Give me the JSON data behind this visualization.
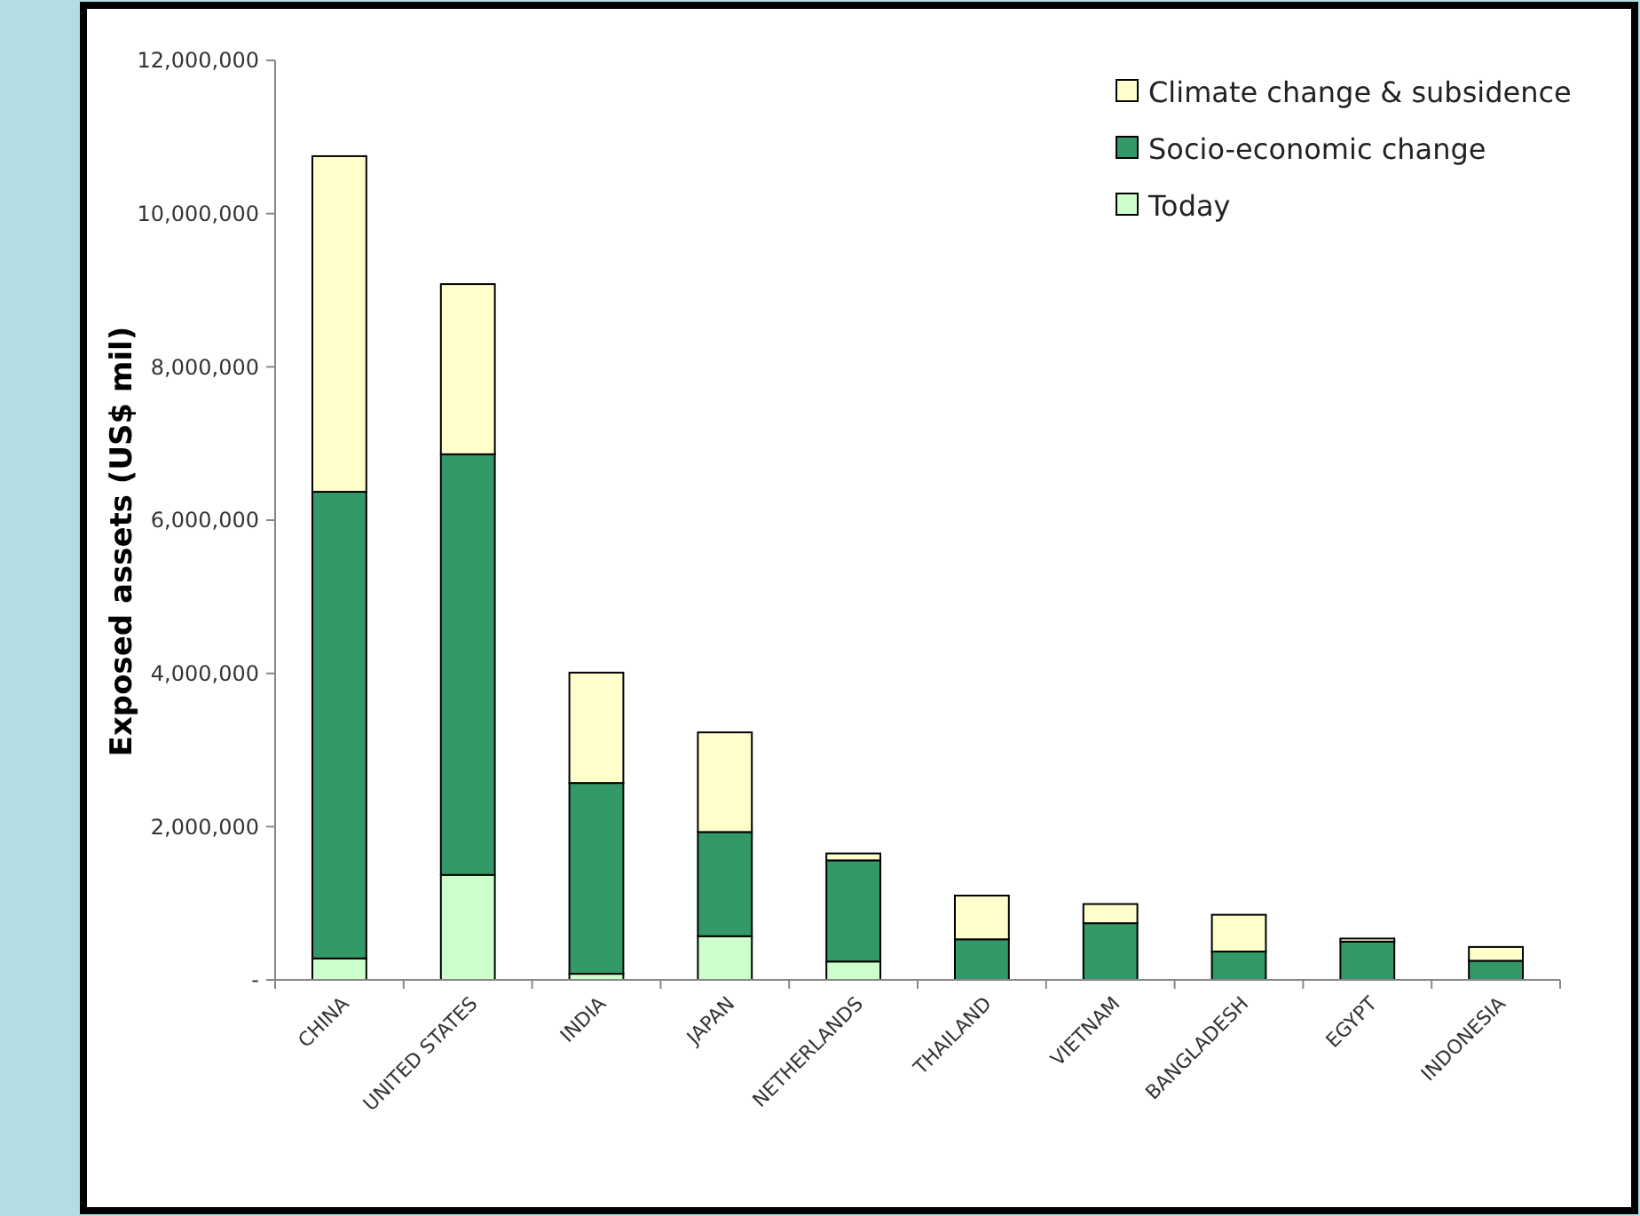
{
  "chart_data": {
    "type": "bar",
    "stacked": true,
    "ylabel": "Exposed assets (US$ mil)",
    "categories": [
      "CHINA",
      "UNITED STATES",
      "INDIA",
      "JAPAN",
      "NETHERLANDS",
      "THAILAND",
      "VIETNAM",
      "BANGLADESH",
      "EGYPT",
      "INDONESIA"
    ],
    "series": [
      {
        "name": "Today",
        "color": "#ccffcc",
        "values": [
          280000,
          1370000,
          80000,
          570000,
          240000,
          null,
          null,
          null,
          null,
          null
        ]
      },
      {
        "name": "Socio-economic change",
        "color": "#339966",
        "values": [
          6090000,
          5490000,
          2490000,
          1360000,
          1320000,
          530000,
          740000,
          370000,
          500000,
          250000
        ]
      },
      {
        "name": "Climate change & subsidence",
        "color": "#ffffcc",
        "values": [
          4380000,
          2220000,
          1440000,
          1300000,
          90000,
          570000,
          250000,
          480000,
          40000,
          180000
        ]
      }
    ],
    "ylim": [
      0,
      12000000
    ],
    "yticks": [
      {
        "value": 0,
        "label": "-"
      },
      {
        "value": 2000000,
        "label": "2,000,000"
      },
      {
        "value": 4000000,
        "label": "4,000,000"
      },
      {
        "value": 6000000,
        "label": "6,000,000"
      },
      {
        "value": 8000000,
        "label": "8,000,000"
      },
      {
        "value": 10000000,
        "label": "10,000,000"
      },
      {
        "value": 12000000,
        "label": "12,000,000"
      }
    ],
    "legend": "top right",
    "grid": false
  }
}
